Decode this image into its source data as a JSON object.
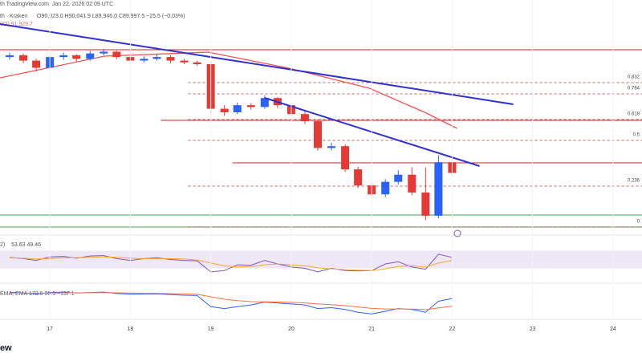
{
  "header": {
    "line1": "th TradingView.com, Jan 22, 2026 02:09 UTC",
    "symbol": "th · Kraken",
    "ohlc": "O90,023.0 H90,041.9 L89,946.0 C89,997.5 −25.5 (−0.03%)",
    "ma": "000  91,929.7",
    "rsi": "2)",
    "rsi_values": "53.63  49.46",
    "macd": "EMA, EMA",
    "macd_values": "173.6  36.5  −137.1",
    "logo": "ew"
  },
  "chart_data": [
    {
      "type": "candlestick",
      "up_color": "#2962ff",
      "down_color": "#e53935",
      "x": [
        16.5,
        16.67,
        16.83,
        17.0,
        17.17,
        17.33,
        17.5,
        17.67,
        17.83,
        18.0,
        18.17,
        18.33,
        18.5,
        18.67,
        18.83,
        19.0,
        19.17,
        19.33,
        19.5,
        19.67,
        19.83,
        20.0,
        20.17,
        20.33,
        20.5,
        20.67,
        20.83,
        21.0,
        21.17,
        21.33,
        21.5,
        21.67,
        21.83,
        22.0
      ],
      "open": [
        96500,
        96600,
        96300,
        95900,
        96500,
        96600,
        96400,
        96700,
        96800,
        96500,
        96300,
        96400,
        96500,
        96300,
        96200,
        96100,
        93600,
        93400,
        93800,
        93700,
        94200,
        93800,
        93300,
        92900,
        91400,
        91500,
        90200,
        89300,
        88800,
        89500,
        89900,
        88900,
        87600,
        90600
      ],
      "close": [
        96600,
        96300,
        95900,
        96500,
        96600,
        96400,
        96700,
        96800,
        96500,
        96300,
        96400,
        96500,
        96300,
        96200,
        96100,
        93600,
        93400,
        93800,
        93700,
        94200,
        93800,
        93300,
        92900,
        91400,
        91500,
        90200,
        89300,
        88800,
        89500,
        89900,
        88900,
        87600,
        90600,
        90000
      ],
      "high": [
        96750,
        96700,
        96400,
        96600,
        96750,
        96650,
        96850,
        96950,
        96850,
        96600,
        96550,
        96650,
        96600,
        96400,
        96300,
        96250,
        93800,
        93950,
        93900,
        94350,
        94250,
        93900,
        93450,
        93000,
        91700,
        91600,
        90350,
        89450,
        89650,
        90150,
        90300,
        90300,
        91000,
        90700
      ],
      "low": [
        96350,
        96150,
        95700,
        95800,
        96350,
        96250,
        96300,
        96600,
        96400,
        96200,
        96200,
        96300,
        96150,
        96100,
        96000,
        93300,
        93200,
        93300,
        93550,
        93600,
        93650,
        93150,
        92750,
        91250,
        91250,
        90050,
        89150,
        88650,
        88650,
        89350,
        88750,
        87350,
        87450,
        89850
      ],
      "ylim": [
        86650,
        99700
      ],
      "xlim": [
        16.38,
        24.36
      ],
      "moving_average": {
        "color": "#ef5350",
        "x": [
          16.38,
          17.68,
          18.97,
          19.97,
          20.97,
          21.66,
          22.06
        ],
        "values": [
          95335,
          96550,
          96775,
          95875,
          94750,
          93400,
          92500
        ]
      },
      "trendlines": [
        {
          "color": "#3030d0",
          "x": [
            16.38,
            22.76
          ],
          "values": [
            98350,
            93850
          ]
        },
        {
          "color": "#3030d0",
          "x": [
            19.67,
            22.34
          ],
          "values": [
            94210,
            90385
          ]
        }
      ],
      "hlines": [
        {
          "value": 96910,
          "color": "#c62828",
          "x_from": 16.38
        },
        {
          "value": 92950,
          "color": "#c62828",
          "x_from": 18.38
        },
        {
          "value": 90565,
          "color": "#c62828",
          "x_from": 19.27
        },
        {
          "value": 87640,
          "color": "#43a047",
          "x_from": 16.38
        },
        {
          "value": 86965,
          "color": "#43a047",
          "x_from": 16.38
        }
      ],
      "fib_levels": [
        {
          "level": 0.832,
          "value": 95065
        },
        {
          "level": 0.764,
          "value": 94435
        },
        {
          "level": 0.618,
          "value": 92995
        },
        {
          "level": 0.5,
          "value": 91825
        },
        {
          "level": 0.236,
          "value": 89260
        },
        {
          "level": 0,
          "value": 86965
        }
      ],
      "fib_color": "#c62828",
      "fib_from": 18.72
    },
    {
      "type": "line",
      "xlim": [
        16.38,
        24.36
      ],
      "ylim": [
        0,
        100
      ],
      "band": [
        30,
        70
      ],
      "band_color": "#ede7f6",
      "series": [
        {
          "color": "#7e57c2",
          "values": [
            55,
            52,
            48,
            56,
            57,
            53,
            58,
            59,
            52,
            48,
            52,
            54,
            50,
            48,
            47,
            22,
            25,
            38,
            37,
            48,
            40,
            33,
            30,
            22,
            30,
            25,
            24,
            25,
            40,
            45,
            33,
            28,
            62,
            55
          ]
        },
        {
          "color": "#f9a825",
          "values": [
            54,
            53,
            51,
            52,
            54,
            54,
            55,
            56,
            55,
            53,
            52,
            52,
            52,
            51,
            49,
            42,
            36,
            33,
            34,
            38,
            40,
            38,
            36,
            31,
            29,
            27,
            26,
            25,
            29,
            34,
            36,
            33,
            42,
            48
          ]
        }
      ]
    },
    {
      "type": "line",
      "xlim": [
        16.38,
        24.36
      ],
      "ylim": [
        -1200,
        600
      ],
      "xticks": [
        17,
        18,
        19,
        20,
        21,
        22,
        23,
        24
      ],
      "series": [
        {
          "color": "#2962ff",
          "values": [
            200,
            150,
            100,
            180,
            200,
            150,
            180,
            200,
            120,
            80,
            90,
            100,
            60,
            30,
            10,
            -600,
            -700,
            -600,
            -500,
            -350,
            -400,
            -450,
            -500,
            -700,
            -650,
            -750,
            -900,
            -1000,
            -850,
            -700,
            -750,
            -900,
            -300,
            -150
          ]
        },
        {
          "color": "#ff7043",
          "values": [
            150,
            150,
            140,
            150,
            160,
            160,
            165,
            170,
            160,
            145,
            135,
            130,
            115,
            100,
            80,
            -60,
            -190,
            -270,
            -320,
            -330,
            -340,
            -360,
            -390,
            -450,
            -490,
            -540,
            -610,
            -690,
            -720,
            -720,
            -730,
            -760,
            -670,
            -570
          ]
        }
      ]
    }
  ]
}
